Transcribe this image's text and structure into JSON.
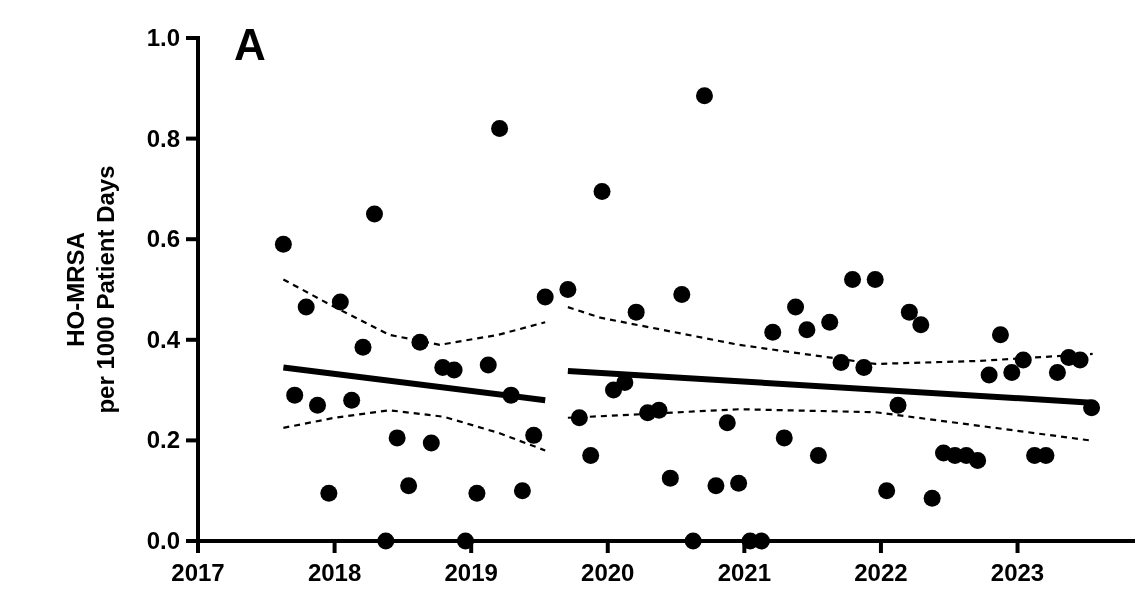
{
  "chart_data": {
    "type": "scatter",
    "title": "A",
    "ylabel": "HO-MRSA\nper 1000 Patient Days",
    "xlim": [
      2017,
      2023.86
    ],
    "xticks": [
      2017,
      2018,
      2019,
      2020,
      2021,
      2022,
      2023
    ],
    "ylim": [
      0,
      1
    ],
    "yticks": [
      {
        "value": 0,
        "label": "0.0"
      },
      {
        "value": 0.2,
        "label": "0.2"
      },
      {
        "value": 0.4,
        "label": "0.4"
      },
      {
        "value": 0.6,
        "label": "0.6"
      },
      {
        "value": 0.8,
        "label": "0.8"
      },
      {
        "value": 1,
        "label": "1.0"
      }
    ],
    "grid": false,
    "series": [
      {
        "color": "#000000",
        "marker": "circle",
        "x": [
          2017.625,
          2017.708,
          2017.792,
          2017.875,
          2017.958,
          2018.042,
          2018.125,
          2018.208,
          2018.292,
          2018.375,
          2018.458,
          2018.542,
          2018.625,
          2018.708,
          2018.792,
          2018.875,
          2018.958,
          2019.042,
          2019.125,
          2019.208,
          2019.292,
          2019.375,
          2019.458,
          2019.542,
          2019.708,
          2019.792,
          2019.875,
          2019.958,
          2020.042,
          2020.125,
          2020.208,
          2020.292,
          2020.375,
          2020.458,
          2020.542,
          2020.625,
          2020.708,
          2020.792,
          2020.875,
          2020.958,
          2021.042,
          2021.125,
          2021.208,
          2021.292,
          2021.375,
          2021.458,
          2021.542,
          2021.625,
          2021.708,
          2021.792,
          2021.875,
          2021.958,
          2022.042,
          2022.125,
          2022.208,
          2022.292,
          2022.375,
          2022.458,
          2022.542,
          2022.625,
          2022.708,
          2022.792,
          2022.875,
          2022.958,
          2023.042,
          2023.125,
          2023.208,
          2023.292,
          2023.375,
          2023.458,
          2023.542
        ],
        "values": [
          0.59,
          0.29,
          0.465,
          0.27,
          0.095,
          0.475,
          0.28,
          0.385,
          0.65,
          0,
          0.205,
          0.11,
          0.395,
          0.195,
          0.345,
          0.34,
          0,
          0.095,
          0.35,
          0.82,
          0.29,
          0.1,
          0.21,
          0.485,
          0.5,
          0.245,
          0.17,
          0.695,
          0.3,
          0.315,
          0.455,
          0.255,
          0.26,
          0.125,
          0.49,
          0,
          0.885,
          0.11,
          0.235,
          0.115,
          0,
          0,
          0.415,
          0.205,
          0.465,
          0.42,
          0.17,
          0.435,
          0.355,
          0.52,
          0.345,
          0.52,
          0.1,
          0.27,
          0.455,
          0.43,
          0.085,
          0.175,
          0.17,
          0.17,
          0.16,
          0.33,
          0.41,
          0.335,
          0.36,
          0.17,
          0.17,
          0.335,
          0.365,
          0.36,
          0.265
        ]
      },
      {
        "type": "line",
        "color": "#000000",
        "line_style": "solid",
        "x": [
          2017.625,
          2019.542
        ],
        "values": [
          0.345,
          0.28
        ]
      },
      {
        "type": "line",
        "color": "#000000",
        "line_style": "solid",
        "x": [
          2019.708,
          2023.542
        ],
        "values": [
          0.338,
          0.275
        ]
      },
      {
        "type": "line",
        "color": "#000000",
        "line_style": "dashed",
        "x": [
          2017.625,
          2018.0,
          2018.4,
          2018.77,
          2019.2,
          2019.542
        ],
        "values": [
          0.52,
          0.465,
          0.41,
          0.39,
          0.41,
          0.435
        ]
      },
      {
        "type": "line",
        "color": "#000000",
        "line_style": "dashed",
        "x": [
          2017.625,
          2018.0,
          2018.4,
          2018.8,
          2019.2,
          2019.542
        ],
        "values": [
          0.225,
          0.245,
          0.26,
          0.247,
          0.215,
          0.18
        ]
      },
      {
        "type": "line",
        "color": "#000000",
        "line_style": "dashed",
        "x": [
          2019.708,
          2019.945,
          2020.96,
          2021.96,
          2022.72,
          2023.55
        ],
        "values": [
          0.465,
          0.444,
          0.39,
          0.352,
          0.358,
          0.372
        ]
      },
      {
        "type": "line",
        "color": "#000000",
        "line_style": "dashed",
        "x": [
          2019.708,
          2019.945,
          2020.96,
          2021.96,
          2022.72,
          2023.53
        ],
        "values": [
          0.245,
          0.248,
          0.262,
          0.256,
          0.229,
          0.2
        ]
      }
    ]
  }
}
